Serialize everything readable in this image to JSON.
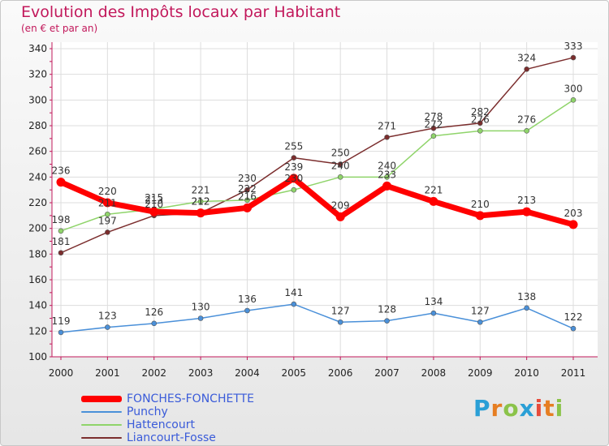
{
  "header": {
    "title": "Evolution des Impôts locaux par Habitant",
    "subtitle": "(en € et par an)"
  },
  "logo": {
    "text": "Proxiti"
  },
  "chart_data": {
    "type": "line",
    "title": "Evolution des Impôts locaux par Habitant",
    "subtitle": "(en € et par an)",
    "xlabel": "",
    "ylabel": "",
    "ylim": [
      100,
      340
    ],
    "yticks": [
      100,
      120,
      140,
      160,
      180,
      200,
      220,
      240,
      260,
      280,
      300,
      320,
      340
    ],
    "grid": true,
    "legend_position": "bottom-left",
    "x": [
      "2000",
      "2001",
      "2002",
      "2003",
      "2004",
      "2005",
      "2006",
      "2007",
      "2008",
      "2009",
      "2010",
      "2011"
    ],
    "series": [
      {
        "name": "Liancourt-Fosse",
        "color": "#7b2d2d",
        "values": [
          181,
          197,
          210,
          212,
          230,
          255,
          250,
          271,
          278,
          282,
          324,
          333
        ]
      },
      {
        "name": "Hattencourt",
        "color": "#8fd46a",
        "values": [
          198,
          211,
          215,
          221,
          222,
          230,
          240,
          240,
          272,
          276,
          276,
          300
        ]
      },
      {
        "name": "Punchy",
        "color": "#4a90d9",
        "values": [
          119,
          123,
          126,
          130,
          136,
          141,
          127,
          128,
          134,
          127,
          138,
          122
        ]
      },
      {
        "name": "FONCHES-FONCHETTE",
        "color": "#ff0000",
        "values": [
          236,
          220,
          213,
          212,
          216,
          239,
          209,
          233,
          221,
          210,
          213,
          203
        ]
      }
    ],
    "legend_order": [
      "FONCHES-FONCHETTE",
      "Punchy",
      "Hattencourt",
      "Liancourt-Fosse"
    ]
  }
}
